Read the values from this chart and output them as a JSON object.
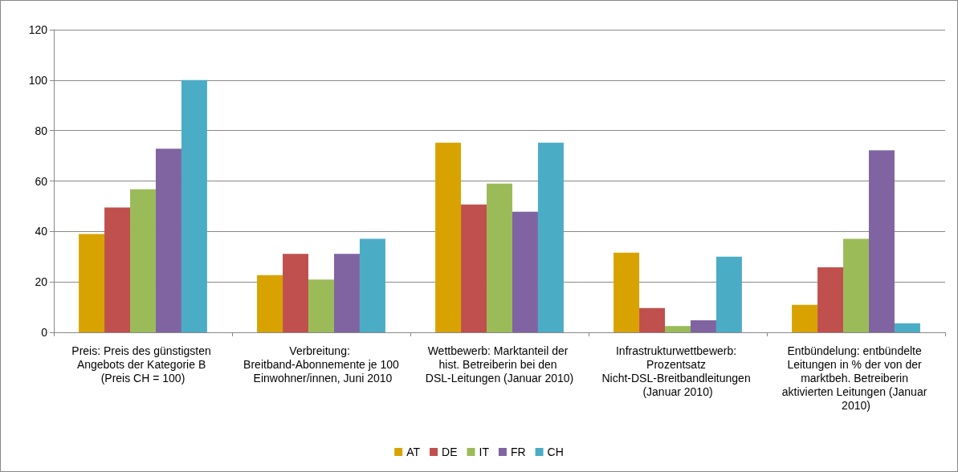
{
  "chart_data": {
    "type": "bar",
    "categories": [
      "Preis: Preis des günstigsten Angebots der Kategorie B (Preis CH = 100)",
      "Verbreitung: Breitband-Abonnemente je 100 Einwohner/innen, Juni 2010",
      "Wettbewerb: Marktanteil der hist. Betreiberin bei den DSL-Leitungen (Januar 2010)",
      "Infrastrukturwettbewerb: Prozentsatz Nicht-DSL-Breitbandleitungen (Januar 2010)",
      "Entbündelung: entbündelte Leitungen in % der von der marktbeh. Betreiberin aktivierten Leitungen (Januar 2010)"
    ],
    "series": [
      {
        "name": "AT",
        "color": "#d8a300",
        "values": [
          39,
          22.7,
          75.2,
          31.6,
          10.9
        ]
      },
      {
        "name": "DE",
        "color": "#c0504d",
        "values": [
          49.5,
          31.1,
          50.7,
          9.6,
          25.8
        ]
      },
      {
        "name": "IT",
        "color": "#9bbb59",
        "values": [
          56.7,
          20.9,
          59,
          2.5,
          37.1
        ]
      },
      {
        "name": "FR",
        "color": "#8064a2",
        "values": [
          72.8,
          31.1,
          47.8,
          4.8,
          72.2
        ]
      },
      {
        "name": "CH",
        "color": "#4bacc6",
        "values": [
          100,
          37.1,
          75.2,
          30,
          3.6
        ]
      }
    ],
    "ylim": [
      0,
      120
    ],
    "yticks": [
      0,
      20,
      40,
      60,
      80,
      100,
      120
    ],
    "grid": "y",
    "legend": "bottom"
  }
}
